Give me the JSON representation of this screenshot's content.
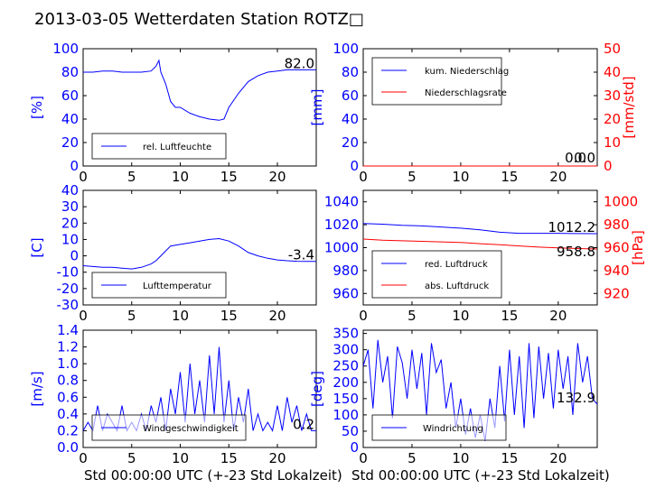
{
  "title": "2013-03-05 Wetterdaten Station ROTZ□",
  "xlabel": "Std 00:00:00 UTC (+-23 Std Lokalzeit)",
  "colors": {
    "blue": "#0000ff",
    "red": "#ff0000",
    "axes": "#000000"
  },
  "chart_data": [
    {
      "type": "line",
      "ylabel": "[%]",
      "xlim": [
        0,
        24
      ],
      "ylim": [
        0,
        100
      ],
      "xticks": [
        0,
        5,
        10,
        15,
        20
      ],
      "yticks": [
        0,
        20,
        40,
        60,
        80,
        100
      ],
      "last_value": "82.0",
      "legend_placement": "lower-left",
      "series": [
        {
          "name": "rel. Luftfeuchte",
          "axis": "left",
          "color": "#0000ff",
          "x": [
            0,
            1,
            2,
            3,
            4,
            5,
            6,
            7,
            7.5,
            7.8,
            8,
            8.5,
            9,
            9.5,
            10,
            11,
            12,
            13,
            14,
            14.5,
            15,
            16,
            17,
            18,
            19,
            20,
            21,
            22,
            23,
            24
          ],
          "y": [
            80,
            80,
            81,
            81,
            80,
            80,
            80,
            81,
            85,
            90,
            80,
            70,
            55,
            50,
            50,
            45,
            42,
            40,
            39,
            40,
            50,
            62,
            72,
            77,
            80,
            81,
            82,
            82,
            82,
            82
          ]
        }
      ]
    },
    {
      "type": "line",
      "ylabel": "[mm]",
      "y2label": "[mm/std]",
      "xlim": [
        0,
        24
      ],
      "ylim": [
        0,
        100
      ],
      "y2lim": [
        0,
        50
      ],
      "xticks": [
        0,
        5,
        10,
        15,
        20
      ],
      "yticks": [
        0,
        20,
        40,
        60,
        80,
        100
      ],
      "y2ticks": [
        0,
        10,
        20,
        30,
        40,
        50
      ],
      "last_value": "0.0",
      "last_value2": "0.0",
      "legend_placement": "upper-left",
      "series": [
        {
          "name": "kum. Niederschlag",
          "axis": "left",
          "color": "#0000ff",
          "x": [
            0,
            24
          ],
          "y": [
            0,
            0
          ]
        },
        {
          "name": "Niederschlagsrate",
          "axis": "right",
          "color": "#ff0000",
          "x": [
            0,
            24
          ],
          "y": [
            0,
            0
          ]
        }
      ]
    },
    {
      "type": "line",
      "ylabel": "[C]",
      "xlim": [
        0,
        24
      ],
      "ylim": [
        -30,
        40
      ],
      "xticks": [
        0,
        5,
        10,
        15,
        20
      ],
      "yticks": [
        -30,
        -20,
        -10,
        0,
        10,
        20,
        30,
        40
      ],
      "last_value": "-3.4",
      "legend_placement": "lower-left",
      "series": [
        {
          "name": "Lufttemperatur",
          "axis": "left",
          "color": "#0000ff",
          "x": [
            0,
            1,
            2,
            3,
            4,
            5,
            6,
            7,
            7.5,
            8,
            8.5,
            9,
            10,
            11,
            12,
            13,
            14,
            15,
            16,
            17,
            18,
            19,
            20,
            21,
            22,
            23,
            24
          ],
          "y": [
            -6,
            -6.5,
            -7,
            -7,
            -7.5,
            -8,
            -7,
            -5,
            -3,
            0,
            3,
            6,
            7,
            8,
            9,
            10,
            10.5,
            9,
            6,
            2,
            0,
            -1.5,
            -2.5,
            -3,
            -3.3,
            -3.4,
            -3.4
          ]
        }
      ]
    },
    {
      "type": "line",
      "y2label": "[hPa]",
      "xlim": [
        0,
        24
      ],
      "ylim": [
        950,
        1050
      ],
      "y2lim": [
        910,
        1010
      ],
      "xticks": [
        0,
        5,
        10,
        15,
        20
      ],
      "yticks": [
        960,
        980,
        1000,
        1020,
        1040
      ],
      "y2ticks": [
        920,
        940,
        960,
        980,
        1000
      ],
      "last_value": "1012.2",
      "last_value2": "958.8",
      "legend_placement": "lower-left",
      "series": [
        {
          "name": "red. Luftdruck",
          "axis": "left",
          "color": "#0000ff",
          "x": [
            0,
            2,
            4,
            6,
            8,
            10,
            12,
            14,
            15,
            16,
            18,
            20,
            22,
            24
          ],
          "y": [
            1021,
            1020.5,
            1019.5,
            1019,
            1018,
            1017,
            1015.5,
            1013.5,
            1013,
            1012.5,
            1012.5,
            1012.5,
            1012.3,
            1012.2
          ]
        },
        {
          "name": "abs. Luftdruck",
          "axis": "right",
          "color": "#ff0000",
          "x": [
            0,
            2,
            4,
            6,
            8,
            10,
            12,
            14,
            16,
            18,
            20,
            22,
            24
          ],
          "y": [
            967.5,
            966.5,
            966,
            965.5,
            965,
            964.5,
            963.5,
            962.5,
            961.5,
            960.5,
            959.8,
            959.2,
            958.8
          ]
        }
      ]
    },
    {
      "type": "line",
      "ylabel": "[m/s]",
      "xlim": [
        0,
        24
      ],
      "ylim": [
        0,
        1.4
      ],
      "xticks": [
        0,
        5,
        10,
        15,
        20
      ],
      "yticks": [
        0.0,
        0.2,
        0.4,
        0.6,
        0.8,
        1.0,
        1.2,
        1.4
      ],
      "last_value": "0.2",
      "legend_placement": "lower-left",
      "series": [
        {
          "name": "Windgeschwindigkeit",
          "axis": "left",
          "color": "#0000ff",
          "x": [
            0,
            0.5,
            1,
            1.5,
            2,
            2.5,
            3,
            3.5,
            4,
            4.5,
            5,
            5.5,
            6,
            6.5,
            7,
            7.5,
            8,
            8.5,
            9,
            9.5,
            10,
            10.5,
            11,
            11.5,
            12,
            12.5,
            13,
            13.5,
            14,
            14.5,
            15,
            15.5,
            16,
            16.5,
            17,
            17.5,
            18,
            18.5,
            19,
            19.5,
            20,
            20.5,
            21,
            21.5,
            22,
            22.5,
            23,
            23.5,
            24
          ],
          "y": [
            0.2,
            0.3,
            0.2,
            0.5,
            0.2,
            0.4,
            0.3,
            0.2,
            0.5,
            0.2,
            0.3,
            0.2,
            0.4,
            0.2,
            0.5,
            0.3,
            0.6,
            0.2,
            0.7,
            0.4,
            0.9,
            0.3,
            1.0,
            0.4,
            0.8,
            0.3,
            1.1,
            0.4,
            1.2,
            0.3,
            0.8,
            0.2,
            0.6,
            0.3,
            0.7,
            0.2,
            0.4,
            0.2,
            0.3,
            0.2,
            0.5,
            0.2,
            0.6,
            0.3,
            0.5,
            0.2,
            0.4,
            0.2,
            0.2
          ]
        }
      ]
    },
    {
      "type": "line",
      "ylabel": "[deg]",
      "xlim": [
        0,
        24
      ],
      "ylim": [
        0,
        360
      ],
      "xticks": [
        0,
        5,
        10,
        15,
        20
      ],
      "yticks": [
        0,
        50,
        100,
        150,
        200,
        250,
        300,
        350
      ],
      "last_value": "132.9",
      "legend_placement": "lower-left",
      "series": [
        {
          "name": "Windrichtung",
          "axis": "left",
          "color": "#0000ff",
          "x": [
            0,
            0.5,
            1,
            1.5,
            2,
            2.5,
            3,
            3.5,
            4,
            4.5,
            5,
            5.5,
            6,
            6.5,
            7,
            7.5,
            8,
            8.5,
            9,
            9.5,
            10,
            10.5,
            11,
            11.5,
            12,
            12.5,
            13,
            13.5,
            14,
            14.5,
            15,
            15.5,
            16,
            16.5,
            17,
            17.5,
            18,
            18.5,
            19,
            19.5,
            20,
            20.5,
            21,
            21.5,
            22,
            22.5,
            23,
            23.5,
            24
          ],
          "y": [
            250,
            300,
            120,
            330,
            200,
            280,
            90,
            310,
            260,
            150,
            300,
            180,
            290,
            100,
            320,
            230,
            270,
            120,
            200,
            60,
            150,
            40,
            120,
            30,
            100,
            20,
            150,
            60,
            250,
            80,
            300,
            100,
            280,
            60,
            320,
            90,
            310,
            150,
            290,
            120,
            300,
            180,
            280,
            100,
            320,
            200,
            280,
            150,
            133
          ]
        }
      ]
    }
  ]
}
